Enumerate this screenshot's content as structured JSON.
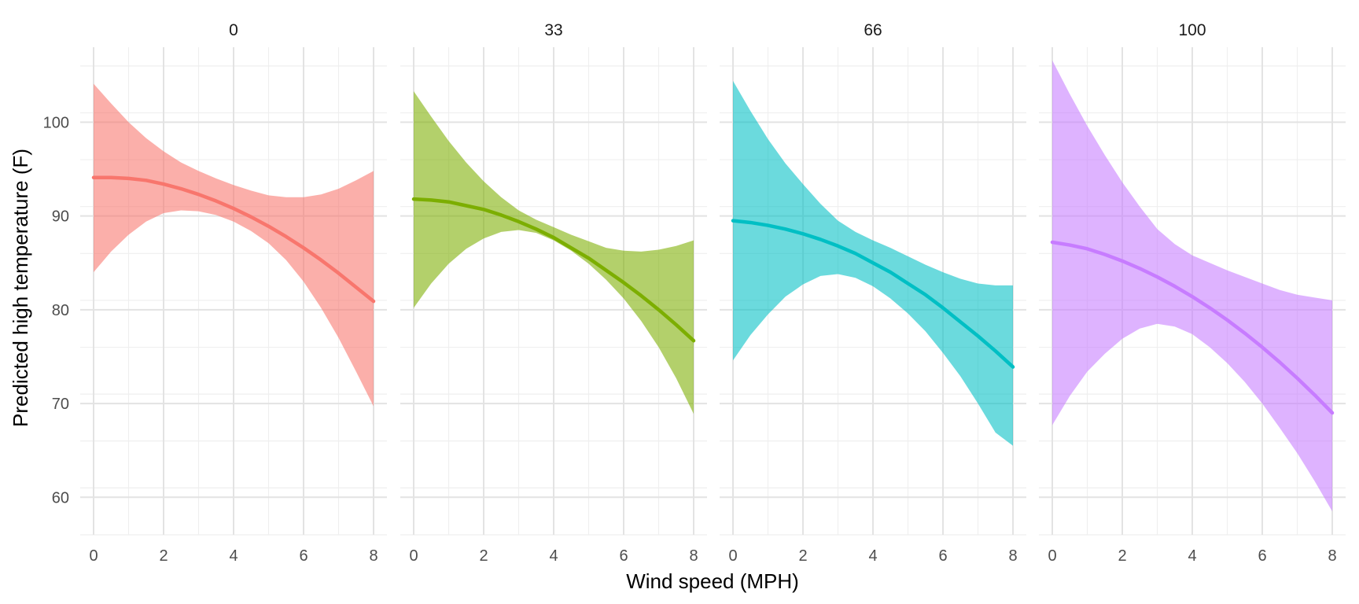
{
  "chart_data": {
    "type": "area",
    "facet_variable_values": [
      "0",
      "33",
      "66",
      "100"
    ],
    "xlabel": "Wind speed (MPH)",
    "ylabel": "Predicted high temperature (F)",
    "xlim": [
      0,
      8
    ],
    "ylim": [
      56,
      108
    ],
    "x_ticks": [
      0,
      2,
      4,
      6,
      8
    ],
    "y_ticks": [
      60,
      70,
      80,
      90,
      100
    ],
    "grid": true,
    "x": [
      0,
      0.5,
      1,
      1.5,
      2,
      2.5,
      3,
      3.5,
      4,
      4.5,
      5,
      5.5,
      6,
      6.5,
      7,
      7.5,
      8
    ],
    "panels": [
      {
        "strip": "0",
        "color": "#F8766D",
        "fit": [
          94.1,
          94.1,
          94.0,
          93.8,
          93.4,
          92.9,
          92.3,
          91.6,
          90.8,
          89.9,
          88.9,
          87.8,
          86.6,
          85.3,
          83.9,
          82.4,
          80.9
        ],
        "lower": [
          84.0,
          86.2,
          88.0,
          89.4,
          90.3,
          90.6,
          90.5,
          90.1,
          89.4,
          88.4,
          87.1,
          85.3,
          83.0,
          80.2,
          77.0,
          73.4,
          69.7
        ],
        "upper": [
          104.1,
          102.0,
          100.0,
          98.3,
          96.9,
          95.7,
          94.8,
          94.0,
          93.3,
          92.7,
          92.2,
          92.0,
          92.0,
          92.3,
          92.9,
          93.8,
          94.8
        ]
      },
      {
        "strip": "33",
        "color": "#7CAE00",
        "fit": [
          91.8,
          91.7,
          91.5,
          91.1,
          90.7,
          90.1,
          89.4,
          88.6,
          87.7,
          86.6,
          85.5,
          84.2,
          82.9,
          81.5,
          80.0,
          78.4,
          76.7
        ],
        "lower": [
          80.2,
          82.8,
          84.9,
          86.5,
          87.6,
          88.3,
          88.5,
          88.2,
          87.4,
          86.3,
          84.9,
          83.2,
          81.2,
          78.8,
          76.0,
          72.7,
          68.9
        ],
        "upper": [
          103.3,
          100.6,
          98.0,
          95.7,
          93.7,
          92.0,
          90.6,
          89.6,
          88.8,
          88.0,
          87.3,
          86.6,
          86.3,
          86.2,
          86.4,
          86.8,
          87.4
        ]
      },
      {
        "strip": "66",
        "color": "#00BFC4",
        "fit": [
          89.5,
          89.3,
          89.0,
          88.6,
          88.1,
          87.5,
          86.8,
          86.0,
          85.0,
          84.0,
          82.8,
          81.6,
          80.2,
          78.7,
          77.2,
          75.6,
          73.9
        ],
        "lower": [
          74.6,
          77.3,
          79.5,
          81.4,
          82.7,
          83.6,
          83.8,
          83.4,
          82.5,
          81.2,
          79.6,
          77.7,
          75.4,
          72.9,
          70.0,
          66.9,
          65.5
        ],
        "upper": [
          104.4,
          101.2,
          98.2,
          95.6,
          93.4,
          91.3,
          89.5,
          88.3,
          87.4,
          86.6,
          85.7,
          84.8,
          84.0,
          83.3,
          82.8,
          82.6,
          82.6
        ]
      },
      {
        "strip": "100",
        "color": "#C77CFF",
        "fit": [
          87.2,
          86.9,
          86.5,
          85.9,
          85.2,
          84.4,
          83.5,
          82.5,
          81.4,
          80.2,
          78.9,
          77.5,
          76.0,
          74.4,
          72.7,
          70.9,
          69.0
        ],
        "lower": [
          67.7,
          70.8,
          73.4,
          75.3,
          76.9,
          78.0,
          78.5,
          78.2,
          77.4,
          76.0,
          74.3,
          72.3,
          70.0,
          67.4,
          64.7,
          61.7,
          58.5
        ],
        "upper": [
          106.6,
          103.0,
          99.6,
          96.5,
          93.6,
          91.0,
          88.6,
          87.0,
          85.8,
          85.0,
          84.2,
          83.5,
          82.8,
          82.1,
          81.6,
          81.3,
          81.0
        ]
      }
    ]
  }
}
